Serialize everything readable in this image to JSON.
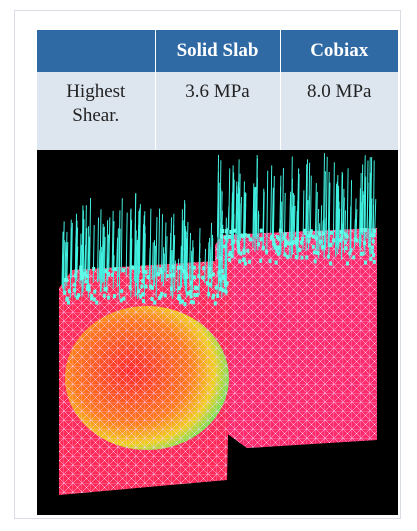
{
  "table": {
    "columns": [
      "Solid Slab",
      "Cobiax"
    ],
    "rows": [
      {
        "label": "Highest Shear.",
        "values": [
          "3.6 MPa",
          "8.0 MPa"
        ]
      }
    ]
  }
}
